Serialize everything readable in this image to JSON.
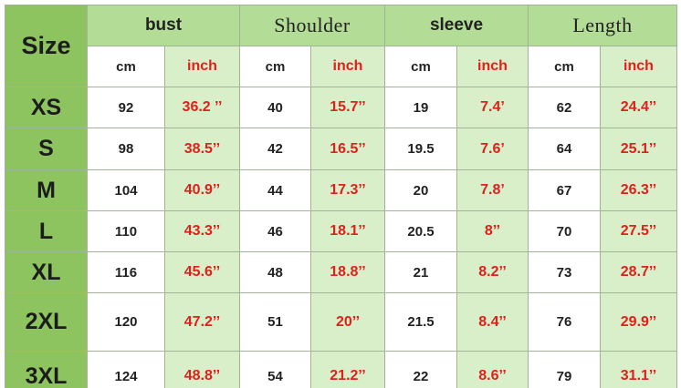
{
  "table": {
    "corner": "Size",
    "columns": [
      "bust",
      "Shoulder",
      "sleeve",
      "Length"
    ],
    "units": [
      "cm",
      "inch",
      "cm",
      "inch",
      "cm",
      "inch",
      "cm",
      "inch"
    ],
    "rows": [
      [
        "XS",
        "92",
        "36.2 ’’",
        "40",
        "15.7’’",
        "19",
        "7.4’",
        "62",
        "24.4’’"
      ],
      [
        "S",
        "98",
        "38.5’’",
        "42",
        "16.5’’",
        "19.5",
        "7.6’",
        "64",
        "25.1’’"
      ],
      [
        "M",
        "104",
        "40.9’’",
        "44",
        "17.3’’",
        "20",
        "7.8’",
        "67",
        "26.3’’"
      ],
      [
        "L",
        "110",
        "43.3’’",
        "46",
        "18.1’’",
        "20.5",
        "8’’",
        "70",
        "27.5’’"
      ],
      [
        "XL",
        "116",
        "45.6’’",
        "48",
        "18.8’’",
        "21",
        "8.2’’",
        "73",
        "28.7’’"
      ],
      [
        "2XL",
        "120",
        "47.2’’",
        "51",
        "20’’",
        "21.5",
        "8.4’’",
        "76",
        "29.9’’"
      ],
      [
        "3XL",
        "124",
        "48.8’’",
        "54",
        "21.2’’",
        "22",
        "8.6’’",
        "79",
        "31.1’’"
      ]
    ]
  }
}
